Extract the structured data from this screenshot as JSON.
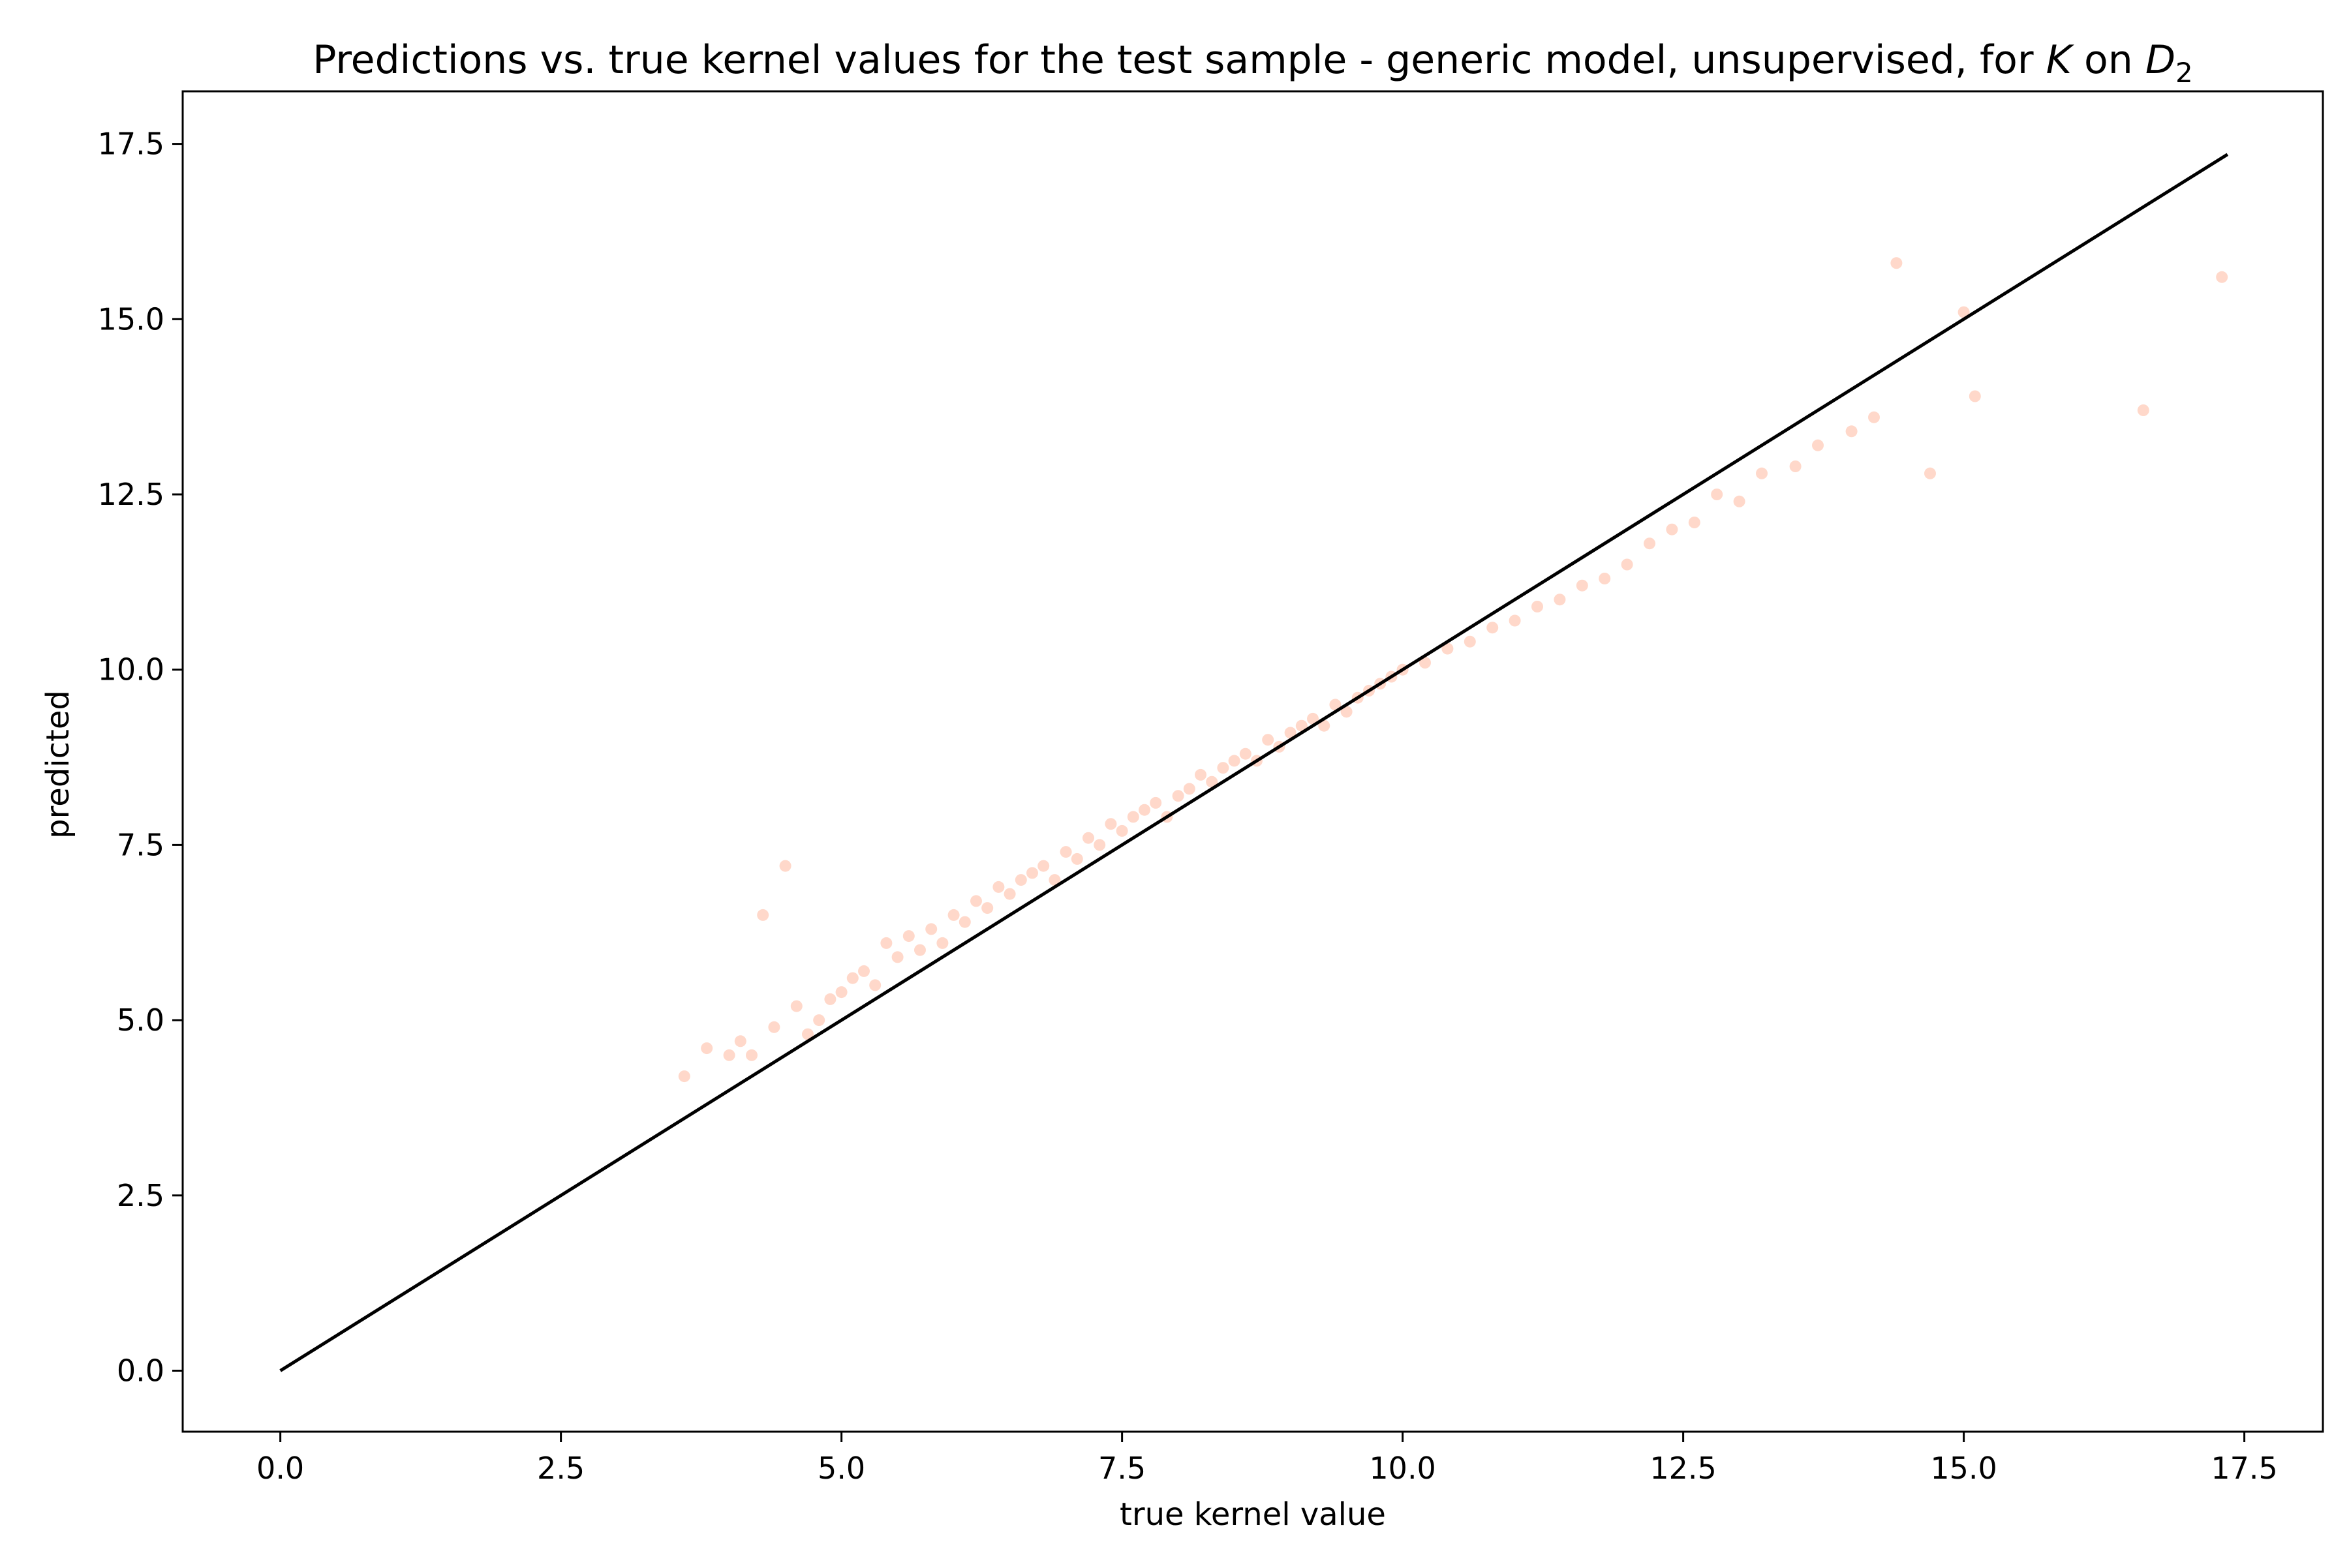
{
  "chart_data": {
    "type": "scatter",
    "title": {
      "main": "Predictions vs. true kernel values for the test sample - generic model, unsupervised, for ",
      "k_symbol": "K",
      "on_text": " on ",
      "d_symbol": "D",
      "d_subscript": "2"
    },
    "xlabel": "true kernel value",
    "ylabel": "predicted",
    "xlim": [
      -0.87,
      18.2
    ],
    "ylim": [
      -0.87,
      18.25
    ],
    "xticks": [
      0.0,
      2.5,
      5.0,
      7.5,
      10.0,
      12.5,
      15.0,
      17.5
    ],
    "yticks": [
      0.0,
      2.5,
      5.0,
      7.5,
      10.0,
      12.5,
      15.0,
      17.5
    ],
    "xtick_labels": [
      "0.0",
      "2.5",
      "5.0",
      "7.5",
      "10.0",
      "12.5",
      "15.0",
      "17.5"
    ],
    "ytick_labels": [
      "0.0",
      "2.5",
      "5.0",
      "7.5",
      "10.0",
      "12.5",
      "15.0",
      "17.5"
    ],
    "grid": false,
    "legend": "none",
    "reference_line": {
      "x": [
        0.0,
        17.35
      ],
      "y": [
        0.0,
        17.35
      ],
      "color": "#000000"
    },
    "scatter_color": "#ff7f50",
    "scatter_opacity": 0.3,
    "series": [
      {
        "x": [
          3.6,
          3.8,
          4.0,
          4.1,
          4.2,
          4.3,
          4.4,
          4.5,
          4.6,
          4.7,
          4.8,
          4.9,
          5.0,
          5.1,
          5.2,
          5.3,
          5.4,
          5.5,
          5.6,
          5.7,
          5.8,
          5.9,
          6.0,
          6.1,
          6.2,
          6.3,
          6.4,
          6.5,
          6.6,
          6.7,
          6.8,
          6.9,
          7.0,
          7.1,
          7.2,
          7.3,
          7.4,
          7.5,
          7.6,
          7.7,
          7.8,
          7.9,
          8.0,
          8.1,
          8.2,
          8.3,
          8.4,
          8.5,
          8.6,
          8.7,
          8.8,
          8.9,
          9.0,
          9.1,
          9.2,
          9.3,
          9.4,
          9.5,
          9.6,
          9.7,
          9.8,
          9.9,
          10.0,
          10.2,
          10.4,
          10.6,
          10.8,
          11.0,
          11.2,
          11.4,
          11.6,
          11.8,
          12.0,
          12.2,
          12.4,
          12.6,
          12.8,
          13.0,
          13.2,
          13.5,
          13.7,
          14.0,
          14.2,
          14.4,
          14.7,
          15.0,
          15.1,
          16.6,
          17.3
        ],
        "y": [
          4.2,
          4.6,
          4.5,
          4.7,
          4.5,
          6.5,
          4.9,
          7.2,
          5.2,
          4.8,
          5.0,
          5.3,
          5.4,
          5.6,
          5.7,
          5.5,
          6.1,
          5.9,
          6.2,
          6.0,
          6.3,
          6.1,
          6.5,
          6.4,
          6.7,
          6.6,
          6.9,
          6.8,
          7.0,
          7.1,
          7.2,
          7.0,
          7.4,
          7.3,
          7.6,
          7.5,
          7.8,
          7.7,
          7.9,
          8.0,
          8.1,
          7.9,
          8.2,
          8.3,
          8.5,
          8.4,
          8.6,
          8.7,
          8.8,
          8.7,
          9.0,
          8.9,
          9.1,
          9.2,
          9.3,
          9.2,
          9.5,
          9.4,
          9.6,
          9.7,
          9.8,
          9.9,
          10.0,
          10.1,
          10.3,
          10.4,
          10.6,
          10.7,
          10.9,
          11.0,
          11.2,
          11.3,
          11.5,
          11.8,
          12.0,
          12.1,
          12.5,
          12.4,
          12.8,
          12.9,
          13.2,
          13.4,
          13.6,
          15.8,
          12.8,
          15.1,
          13.9,
          13.7,
          15.6
        ]
      }
    ]
  }
}
